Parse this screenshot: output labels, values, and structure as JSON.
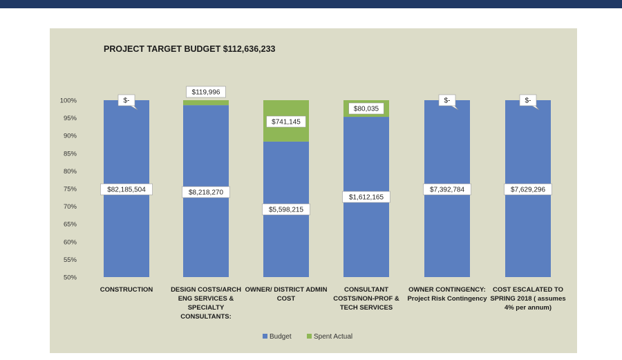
{
  "chart_data": {
    "type": "bar",
    "stacked": true,
    "title": "PROJECT TARGET BUDGET $112,636,233",
    "xlabel": "",
    "ylabel": "",
    "ylim": [
      50,
      100
    ],
    "y_ticks": [
      "100%",
      "95%",
      "90%",
      "85%",
      "80%",
      "75%",
      "70%",
      "65%",
      "60%",
      "55%",
      "50%"
    ],
    "grid": false,
    "legend_position": "bottom",
    "categories": [
      "CONSTRUCTION",
      "DESIGN COSTS/ARCH ENG SERVICES & SPECIALTY CONSULTANTS:",
      "OWNER/ DISTRICT ADMIN COST",
      "CONSULTANT COSTS/NON-PROF & TECH SERVICES",
      "OWNER CONTINGENCY: Project Risk Contingency",
      "COST ESCALATED TO SPRING 2018 ( assumes 4% per annum)"
    ],
    "series": [
      {
        "name": "Budget",
        "color": "#5b7fc0",
        "percent": [
          100,
          98.6,
          88.3,
          95.3,
          100,
          100
        ],
        "labels": [
          "$82,185,504",
          "$8,218,270",
          "$5,598,215",
          "$1,612,165",
          "$7,392,784",
          "$7,629,296"
        ]
      },
      {
        "name": "Spent Actual",
        "color": "#8fb756",
        "percent": [
          0,
          1.4,
          11.7,
          4.7,
          0,
          0
        ],
        "labels": [
          "$-",
          "$119,996",
          "$741,145",
          "$80,035",
          "$-",
          "$-"
        ]
      }
    ]
  }
}
